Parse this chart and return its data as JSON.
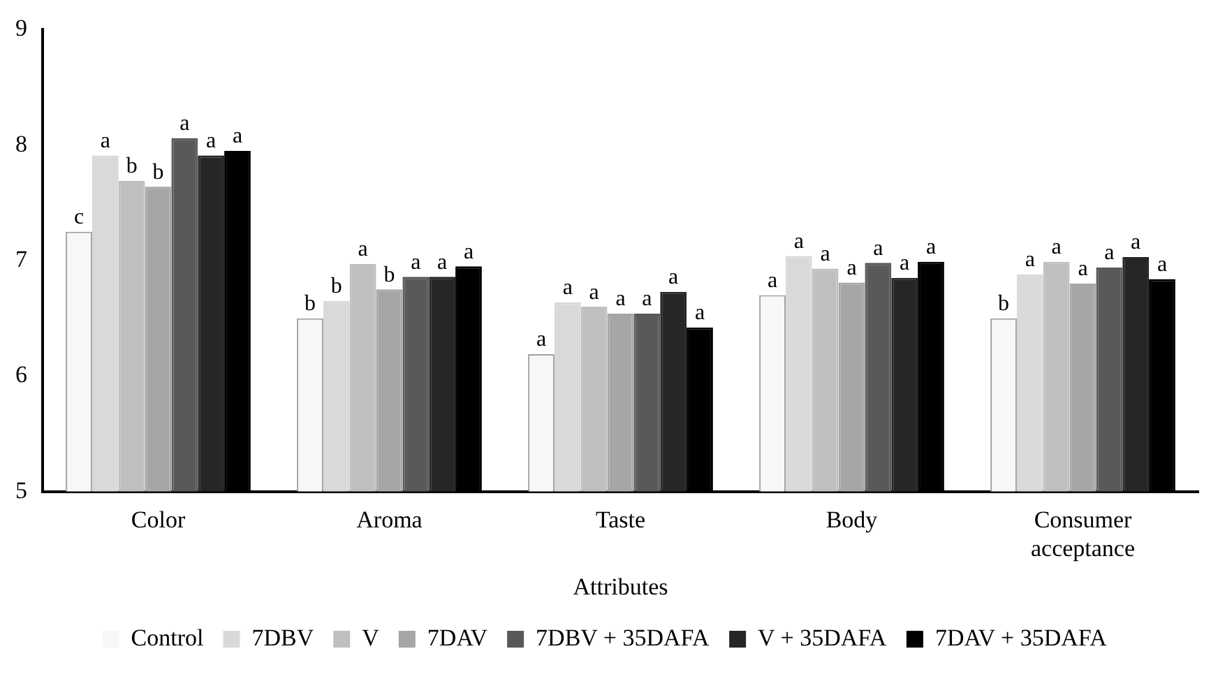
{
  "chart_data": {
    "type": "bar",
    "xlabel": "Attributes",
    "categories": [
      "Color",
      "Aroma",
      "Taste",
      "Body",
      "Consumer acceptance"
    ],
    "series": [
      {
        "name": "Control",
        "color": "#f7f7f7",
        "values": [
          7.25,
          6.5,
          6.19,
          6.7,
          6.5
        ],
        "value_labels": [
          "c",
          "b",
          "a",
          "a",
          "b"
        ]
      },
      {
        "name": "7DBV",
        "color": "#d9d9d9",
        "values": [
          7.91,
          6.65,
          6.64,
          7.04,
          6.88
        ],
        "value_labels": [
          "a",
          "b",
          "a",
          "a",
          "a"
        ]
      },
      {
        "name": "V",
        "color": "#bfbfbf",
        "values": [
          7.69,
          6.97,
          6.6,
          6.93,
          6.99
        ],
        "value_labels": [
          "b",
          "a",
          "a",
          "a",
          "a"
        ]
      },
      {
        "name": "7DAV",
        "color": "#a6a6a6",
        "values": [
          7.64,
          6.75,
          6.54,
          6.81,
          6.8
        ],
        "value_labels": [
          "b",
          "b",
          "a",
          "a",
          "a"
        ]
      },
      {
        "name": "7DBV + 35DAFA",
        "color": "#595959",
        "values": [
          8.06,
          6.86,
          6.54,
          6.98,
          6.94
        ],
        "value_labels": [
          "a",
          "a",
          "a",
          "a",
          "a"
        ]
      },
      {
        "name": "V + 35DAFA",
        "color": "#262626",
        "values": [
          7.91,
          6.86,
          6.73,
          6.85,
          7.03
        ],
        "value_labels": [
          "a",
          "a",
          "a",
          "a",
          "a"
        ]
      },
      {
        "name": "7DAV + 35DAFA",
        "color": "#000000",
        "values": [
          7.95,
          6.95,
          6.42,
          6.99,
          6.84
        ],
        "value_labels": [
          "a",
          "a",
          "a",
          "a",
          "a"
        ]
      }
    ],
    "ylim": [
      5,
      9
    ],
    "yticks": [
      5,
      6,
      7,
      8,
      9
    ],
    "grid": false,
    "legend": "bottom"
  }
}
